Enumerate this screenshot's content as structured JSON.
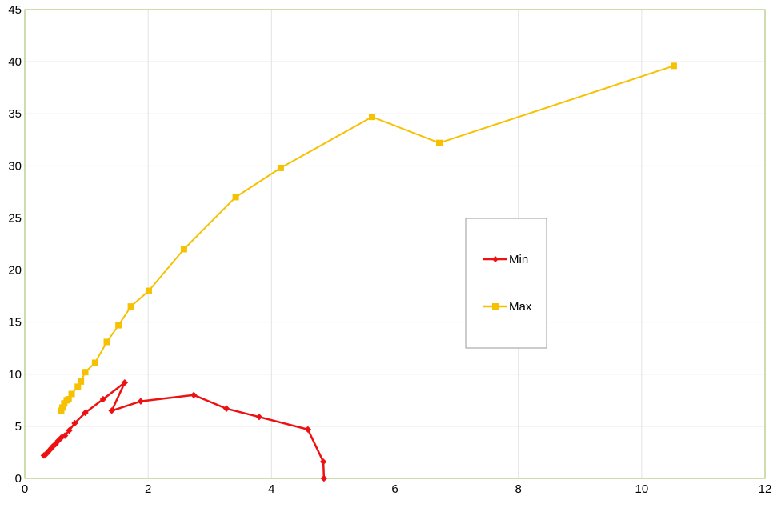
{
  "chart_data": {
    "type": "line",
    "title": "",
    "xlabel": "",
    "ylabel": "",
    "xlim": [
      0,
      12
    ],
    "ylim": [
      0,
      45
    ],
    "x_ticks": [
      0,
      2,
      4,
      6,
      8,
      10,
      12
    ],
    "y_ticks": [
      0,
      5,
      10,
      15,
      20,
      25,
      30,
      35,
      40,
      45
    ],
    "grid": true,
    "legend_position": "center-right",
    "colors": {
      "plot_border": "#9bbb59",
      "gridline": "#e3e3e3",
      "min_series": "#ee1111",
      "max_series": "#f5c100",
      "legend_border": "#9a9a9a"
    },
    "series": [
      {
        "name": "Min",
        "marker": "diamond",
        "points": [
          {
            "x": 0.31,
            "y": 2.2
          },
          {
            "x": 0.34,
            "y": 2.3
          },
          {
            "x": 0.37,
            "y": 2.5
          },
          {
            "x": 0.4,
            "y": 2.7
          },
          {
            "x": 0.43,
            "y": 2.9
          },
          {
            "x": 0.46,
            "y": 3.1
          },
          {
            "x": 0.5,
            "y": 3.3
          },
          {
            "x": 0.54,
            "y": 3.6
          },
          {
            "x": 0.59,
            "y": 3.9
          },
          {
            "x": 0.65,
            "y": 4.1
          },
          {
            "x": 0.72,
            "y": 4.6
          },
          {
            "x": 0.81,
            "y": 5.3
          },
          {
            "x": 0.98,
            "y": 6.3
          },
          {
            "x": 1.27,
            "y": 7.6
          },
          {
            "x": 1.62,
            "y": 9.2
          },
          {
            "x": 1.41,
            "y": 6.5
          },
          {
            "x": 1.88,
            "y": 7.4
          },
          {
            "x": 2.74,
            "y": 8.0
          },
          {
            "x": 3.27,
            "y": 6.7
          },
          {
            "x": 3.8,
            "y": 5.9
          },
          {
            "x": 4.59,
            "y": 4.7
          },
          {
            "x": 4.84,
            "y": 1.6
          },
          {
            "x": 4.85,
            "y": 0.0
          }
        ]
      },
      {
        "name": "Max",
        "marker": "square",
        "points": [
          {
            "x": 0.59,
            "y": 6.5
          },
          {
            "x": 0.61,
            "y": 6.8
          },
          {
            "x": 0.64,
            "y": 7.2
          },
          {
            "x": 0.68,
            "y": 7.5
          },
          {
            "x": 0.71,
            "y": 7.6
          },
          {
            "x": 0.76,
            "y": 8.1
          },
          {
            "x": 0.86,
            "y": 8.8
          },
          {
            "x": 0.91,
            "y": 9.3
          },
          {
            "x": 0.98,
            "y": 10.2
          },
          {
            "x": 1.14,
            "y": 11.1
          },
          {
            "x": 1.33,
            "y": 13.1
          },
          {
            "x": 1.52,
            "y": 14.7
          },
          {
            "x": 1.72,
            "y": 16.5
          },
          {
            "x": 2.01,
            "y": 18.0
          },
          {
            "x": 2.58,
            "y": 22.0
          },
          {
            "x": 3.42,
            "y": 27.0
          },
          {
            "x": 4.15,
            "y": 29.8
          },
          {
            "x": 5.63,
            "y": 34.7
          },
          {
            "x": 6.72,
            "y": 32.2
          },
          {
            "x": 10.52,
            "y": 39.6
          }
        ]
      }
    ]
  }
}
